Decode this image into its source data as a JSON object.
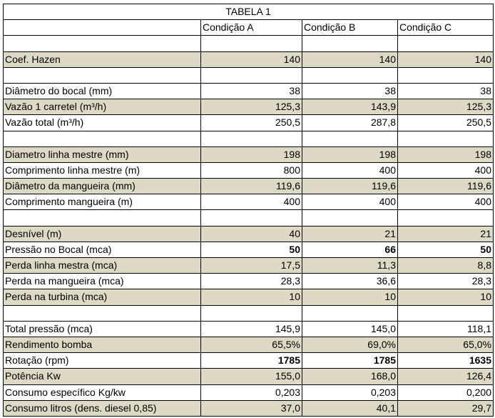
{
  "table": {
    "title": "TABELA 1",
    "columns": [
      "Condição A",
      "Condição B",
      "Condição C"
    ],
    "rows": [
      null,
      {
        "label": "Coef. Hazen",
        "values": [
          "140",
          "140",
          "140"
        ],
        "shaded": true
      },
      null,
      {
        "label": "Diâmetro do bocal  (mm)",
        "values": [
          "38",
          "38",
          "38"
        ]
      },
      {
        "label": "Vazão 1 carretel (m³/h)",
        "values": [
          "125,3",
          "143,9",
          "125,3"
        ],
        "shaded": true
      },
      {
        "label": "Vazão total (m³/h)",
        "values": [
          "250,5",
          "287,8",
          "250,5"
        ]
      },
      null,
      {
        "label": "Diametro linha mestre (mm)",
        "values": [
          "198",
          "198",
          "198"
        ],
        "shaded": true
      },
      {
        "label": "Comprimento linha mestre (m)",
        "values": [
          "800",
          "400",
          "400"
        ]
      },
      {
        "label": "Diâmetro da mangueira (mm)",
        "values": [
          "119,6",
          "119,6",
          "119,6"
        ],
        "shaded": true
      },
      {
        "label": "Comprimento mangueira (m)",
        "values": [
          "400",
          "400",
          "400"
        ]
      },
      null,
      {
        "label": "Desnível (m)",
        "values": [
          "40",
          "21",
          "21"
        ],
        "shaded": true
      },
      {
        "label": "Pressão no Bocal (mca)",
        "values": [
          "50",
          "66",
          "50"
        ],
        "bold": true
      },
      {
        "label": "Perda linha mestra (mca)",
        "values": [
          "17,5",
          "11,3",
          "8,8"
        ],
        "shaded": true
      },
      {
        "label": "Perda na mangueira (mca)",
        "values": [
          "28,3",
          "36,6",
          "28,3"
        ]
      },
      {
        "label": "Perda na turbina (mca)",
        "values": [
          "10",
          "10",
          "10"
        ],
        "shaded": true
      },
      null,
      {
        "label": "Total pressão (mca)",
        "values": [
          "145,9",
          "145,0",
          "118,1"
        ]
      },
      {
        "label": "Rendimento bomba",
        "values": [
          "65,5%",
          "69,0%",
          "65,0%"
        ],
        "shaded": true
      },
      {
        "label": "Rotação (rpm)",
        "values": [
          "1785",
          "1785",
          "1635"
        ],
        "bold": true
      },
      {
        "label": "Potência Kw",
        "values": [
          "155,0",
          "168,0",
          "126,4"
        ],
        "shaded": true
      },
      {
        "label": "Consumo específico Kg/kw",
        "values": [
          "0,203",
          "0,203",
          "0,200"
        ]
      },
      {
        "label": "Consumo litros (dens. diesel 0,85)",
        "values": [
          "37,0",
          "40,1",
          "29,7"
        ],
        "shaded": true
      }
    ]
  }
}
